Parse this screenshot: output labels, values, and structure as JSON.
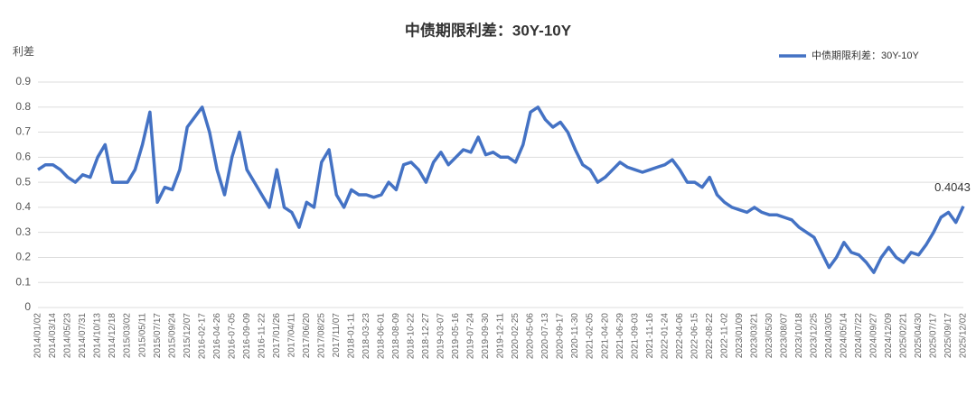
{
  "chart_data": {
    "type": "line",
    "title": "中债期限利差：30Y-10Y",
    "y_label": "利差",
    "annotation": "0.4043",
    "categories": [
      "2014/01/02",
      null,
      "2014/03/14",
      null,
      "2014/05/23",
      null,
      "2014/07/31",
      null,
      "2014/10/13",
      null,
      "2014/12/18",
      null,
      "2015/03/02",
      null,
      "2015/05/11",
      null,
      "2015/07/17",
      null,
      "2015/09/24",
      null,
      "2015/12/07",
      null,
      "2016-02-17",
      null,
      "2016-04-26",
      null,
      "2016-07-05",
      null,
      "2016-09-09",
      null,
      "2016-11-22",
      null,
      "2017/01/26",
      null,
      "2017/04/11",
      null,
      "2017/06/20",
      null,
      "2017/08/25",
      null,
      "2017/11/07",
      null,
      "2018-01-11",
      null,
      "2018-03-23",
      null,
      "2018-06-01",
      null,
      "2018-08-09",
      null,
      "2018-10-22",
      null,
      "2018-12-27",
      null,
      "2019-03-07",
      null,
      "2019-05-16",
      null,
      "2019-07-24",
      null,
      "2019-09-30",
      null,
      "2019-12-11",
      null,
      "2020-02-25",
      null,
      "2020-05-06",
      null,
      "2020-07-13",
      null,
      "2020-09-17",
      null,
      "2020-11-30",
      null,
      "2021-02-05",
      null,
      "2021-04-20",
      null,
      "2021-06-29",
      null,
      "2021-09-03",
      null,
      "2021-11-16",
      null,
      "2022-01-24",
      null,
      "2022-04-06",
      null,
      "2022-06-15",
      null,
      "2022-08-22",
      null,
      "2022-11-02",
      null,
      "2023/01/09",
      null,
      "2023/03/21",
      null,
      "2023/05/30",
      null,
      "2023/08/07",
      null,
      "2023/10/18",
      null,
      "2023/12/25",
      null,
      "2024/03/05",
      null,
      "2024/05/14",
      null,
      "2024/07/22",
      null,
      "2024/09/27",
      null,
      "2024/12/09",
      null,
      "2025/02/21",
      null,
      "2025/04/30",
      null,
      "2025/07/17",
      null,
      "2025/09/17",
      null,
      "2025/12/02"
    ],
    "series": [
      {
        "name": "中债期限利差：30Y-10Y",
        "color": "#4472c4",
        "values": [
          0.55,
          0.57,
          0.57,
          0.55,
          0.52,
          0.5,
          0.53,
          0.52,
          0.6,
          0.65,
          0.5,
          0.5,
          0.5,
          0.55,
          0.65,
          0.78,
          0.42,
          0.48,
          0.47,
          0.55,
          0.72,
          0.76,
          0.8,
          0.7,
          0.55,
          0.45,
          0.6,
          0.7,
          0.55,
          0.5,
          0.45,
          0.4,
          0.55,
          0.4,
          0.38,
          0.32,
          0.42,
          0.4,
          0.58,
          0.63,
          0.45,
          0.4,
          0.47,
          0.45,
          0.45,
          0.44,
          0.45,
          0.5,
          0.47,
          0.57,
          0.58,
          0.55,
          0.5,
          0.58,
          0.62,
          0.57,
          0.6,
          0.63,
          0.62,
          0.68,
          0.61,
          0.62,
          0.6,
          0.6,
          0.58,
          0.65,
          0.78,
          0.8,
          0.75,
          0.72,
          0.74,
          0.7,
          0.63,
          0.57,
          0.55,
          0.5,
          0.52,
          0.55,
          0.58,
          0.56,
          0.55,
          0.54,
          0.55,
          0.56,
          0.57,
          0.59,
          0.55,
          0.5,
          0.5,
          0.48,
          0.52,
          0.45,
          0.42,
          0.4,
          0.39,
          0.38,
          0.4,
          0.38,
          0.37,
          0.37,
          0.36,
          0.35,
          0.32,
          0.3,
          0.28,
          0.22,
          0.16,
          0.2,
          0.26,
          0.22,
          0.21,
          0.18,
          0.14,
          0.2,
          0.24,
          0.2,
          0.18,
          0.22,
          0.21,
          0.25,
          0.3,
          0.36,
          0.38,
          0.34,
          0.4043
        ]
      }
    ],
    "ylim": [
      0,
      0.9
    ],
    "yticks": [
      0,
      0.1,
      0.2,
      0.3,
      0.4,
      0.5,
      0.6,
      0.7,
      0.8,
      0.9
    ],
    "grid": true,
    "legend": "top-right"
  }
}
